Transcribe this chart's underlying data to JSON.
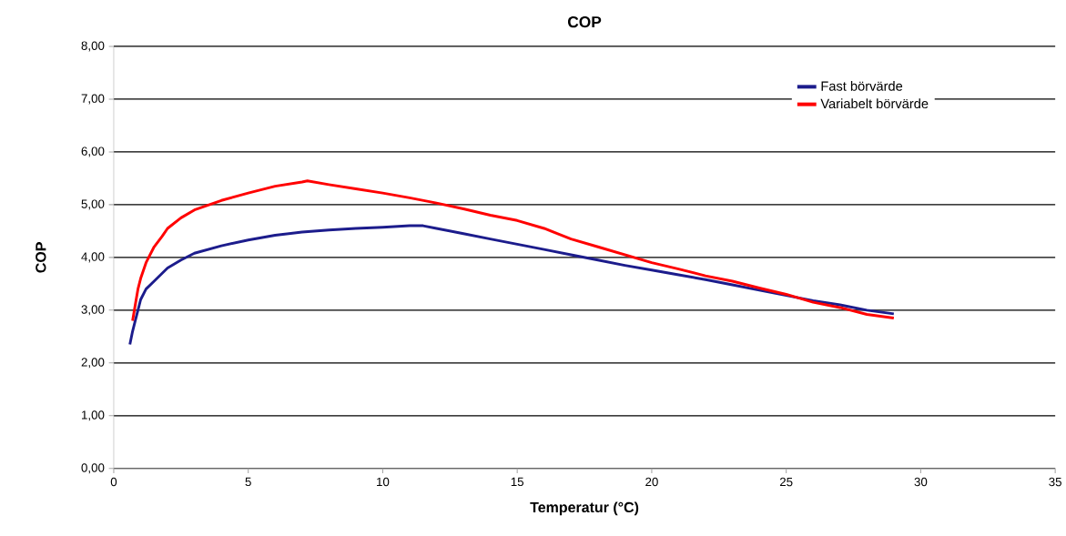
{
  "chart_data": {
    "type": "line",
    "title": "COP",
    "xlabel": "Temperatur (°C)",
    "ylabel": "COP",
    "xlim": [
      0,
      35
    ],
    "xticks": [
      0,
      5,
      10,
      15,
      20,
      25,
      30,
      35
    ],
    "ylim": [
      0,
      8
    ],
    "yticks": [
      {
        "value": 0,
        "label": "0,00"
      },
      {
        "value": 1,
        "label": "1,00"
      },
      {
        "value": 2,
        "label": "2,00"
      },
      {
        "value": 3,
        "label": "3,00"
      },
      {
        "value": 4,
        "label": "4,00"
      },
      {
        "value": 5,
        "label": "5,00"
      },
      {
        "value": 6,
        "label": "6,00"
      },
      {
        "value": 7,
        "label": "7,00"
      },
      {
        "value": 8,
        "label": "8,00"
      }
    ],
    "grid": "y",
    "legend": "top right",
    "line_style": "solid",
    "marker": "none",
    "series": [
      {
        "name": "Fast börvärde",
        "color": "#1c1c8c",
        "x": [
          0.6,
          0.7,
          0.8,
          0.9,
          1.0,
          1.2,
          1.5,
          2,
          2.5,
          3,
          4,
          5,
          6,
          7,
          8,
          9,
          10,
          11,
          11.5,
          12,
          13,
          14,
          15,
          16,
          17,
          18,
          19,
          20,
          21,
          22,
          23,
          24,
          25,
          26,
          27,
          28,
          29
        ],
        "values": [
          2.35,
          2.6,
          2.8,
          3.0,
          3.2,
          3.4,
          3.55,
          3.8,
          3.95,
          4.08,
          4.22,
          4.33,
          4.42,
          4.48,
          4.52,
          4.55,
          4.57,
          4.6,
          4.6,
          4.55,
          4.45,
          4.35,
          4.25,
          4.15,
          4.05,
          3.95,
          3.85,
          3.76,
          3.67,
          3.58,
          3.48,
          3.38,
          3.28,
          3.18,
          3.1,
          3.0,
          2.93
        ]
      },
      {
        "name": "Variabelt börvärde",
        "color": "#ff0000",
        "x": [
          0.7,
          0.8,
          0.9,
          1.0,
          1.2,
          1.5,
          1.8,
          2,
          2.5,
          3,
          4,
          5,
          6,
          7,
          7.2,
          8,
          9,
          10,
          11,
          12,
          13,
          14,
          15,
          16,
          17,
          18,
          19,
          20,
          21,
          22,
          23,
          24,
          25,
          26,
          27,
          28,
          29
        ],
        "values": [
          2.8,
          3.1,
          3.4,
          3.6,
          3.9,
          4.2,
          4.4,
          4.55,
          4.75,
          4.9,
          5.08,
          5.22,
          5.35,
          5.43,
          5.45,
          5.38,
          5.3,
          5.22,
          5.13,
          5.03,
          4.92,
          4.8,
          4.7,
          4.55,
          4.35,
          4.2,
          4.05,
          3.9,
          3.78,
          3.65,
          3.55,
          3.42,
          3.3,
          3.15,
          3.05,
          2.92,
          2.85
        ]
      }
    ]
  }
}
